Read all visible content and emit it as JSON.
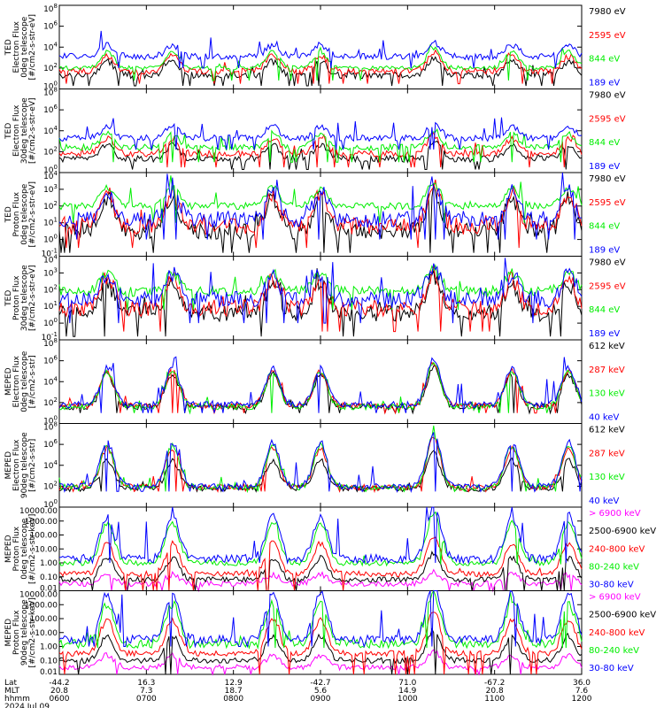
{
  "colors": {
    "black": "#000000",
    "red": "#ff0000",
    "green": "#00ee00",
    "blue": "#0000ff",
    "magenta": "#ff00ff",
    "gray": "#555555"
  },
  "chart_data": {
    "type": "line",
    "x_rows": [
      {
        "label": "Lat",
        "values": [
          "-44.2",
          "16.3",
          "12.9",
          "-42.7",
          "71.0",
          "-67.2",
          "36.0"
        ]
      },
      {
        "label": "MLT",
        "values": [
          "20.8",
          "7.3",
          "18.7",
          "5.6",
          "14.9",
          "20.8",
          "7.6"
        ]
      },
      {
        "label": "hhmm",
        "values": [
          "0600",
          "0700",
          "0800",
          "0900",
          "1000",
          "1100",
          "1200"
        ]
      }
    ],
    "date_label": "2024 Jul 09",
    "x_hours": [
      6,
      7,
      8,
      9,
      10,
      11,
      12
    ],
    "panels": [
      {
        "ylabel": [
          "TED",
          "Electron Flux",
          "0deg telescope",
          "[#/cm2-s-str-eV]"
        ],
        "yticks": [
          "10^0",
          "10^2",
          "10^4",
          "10^6",
          "10^8"
        ],
        "ylog": [
          0,
          8
        ],
        "legend": [
          {
            "label": "7980 eV",
            "color": "#000000"
          },
          {
            "label": "2595 eV",
            "color": "#ff0000"
          },
          {
            "label": "844 eV",
            "color": "#00ee00"
          },
          {
            "label": "189 eV",
            "color": "#0000ff"
          }
        ],
        "series": [
          {
            "name": "7980 eV",
            "color": "#000000",
            "base": 1.3,
            "noise": 0.3,
            "peak_scale": 0.6,
            "spikes": 0.3,
            "floor": 0.3
          },
          {
            "name": "2595 eV",
            "color": "#ff0000",
            "base": 1.7,
            "noise": 0.3,
            "peak_scale": 0.65,
            "spikes": 0.3,
            "floor": 0.5
          },
          {
            "name": "844 eV",
            "color": "#00ee00",
            "base": 2.0,
            "noise": 0.2,
            "peak_scale": 0.7,
            "spikes": 0.4,
            "floor": 0.8
          },
          {
            "name": "189 eV",
            "color": "#0000ff",
            "base": 3.1,
            "noise": 0.3,
            "peak_scale": 0.5,
            "spikes": 0.6,
            "floor": 2.0
          }
        ]
      },
      {
        "ylabel": [
          "TED",
          "Electron Flux",
          "30deg telescope",
          "[#/cm2-s-str-eV]"
        ],
        "yticks": [
          "10^0",
          "10^2",
          "10^4",
          "10^6",
          "10^8"
        ],
        "ylog": [
          0,
          8
        ],
        "legend": [
          {
            "label": "7980 eV",
            "color": "#000000"
          },
          {
            "label": "2595 eV",
            "color": "#ff0000"
          },
          {
            "label": "844 eV",
            "color": "#00ee00"
          },
          {
            "label": "189 eV",
            "color": "#0000ff"
          }
        ],
        "series": [
          {
            "name": "7980 eV",
            "color": "#000000",
            "base": 1.3,
            "noise": 0.3,
            "peak_scale": 0.6,
            "spikes": 0.3,
            "floor": 0.3
          },
          {
            "name": "2595 eV",
            "color": "#ff0000",
            "base": 1.8,
            "noise": 0.3,
            "peak_scale": 0.65,
            "spikes": 0.3,
            "floor": 0.5
          },
          {
            "name": "844 eV",
            "color": "#00ee00",
            "base": 2.4,
            "noise": 0.3,
            "peak_scale": 0.6,
            "spikes": 0.4,
            "floor": 1.0
          },
          {
            "name": "189 eV",
            "color": "#0000ff",
            "base": 3.3,
            "noise": 0.3,
            "peak_scale": 0.5,
            "spikes": 0.6,
            "floor": 2.2
          }
        ]
      },
      {
        "ylabel": [
          "TED",
          "Proton Flux",
          "0deg telescope",
          "[#/cm2-s-str-eV]"
        ],
        "yticks": [
          "10^-1",
          "10^0",
          "10^1",
          "10^2",
          "10^3",
          "10^4"
        ],
        "ylog": [
          -1,
          4
        ],
        "legend": [
          {
            "label": "7980 eV",
            "color": "#000000"
          },
          {
            "label": "2595 eV",
            "color": "#ff0000"
          },
          {
            "label": "844 eV",
            "color": "#00ee00"
          },
          {
            "label": "189 eV",
            "color": "#0000ff"
          }
        ],
        "series": [
          {
            "name": "7980 eV",
            "color": "#000000",
            "base": 0.5,
            "noise": 0.5,
            "peak_scale": 0.9,
            "spikes": 0.3,
            "floor": -0.8
          },
          {
            "name": "2595 eV",
            "color": "#ff0000",
            "base": 0.8,
            "noise": 0.5,
            "peak_scale": 0.9,
            "spikes": 0.3,
            "floor": -0.5
          },
          {
            "name": "844 eV",
            "color": "#00ee00",
            "base": 2.0,
            "noise": 0.2,
            "peak_scale": 0.5,
            "spikes": 0.4,
            "floor": 1.0
          },
          {
            "name": "189 eV",
            "color": "#0000ff",
            "base": 1.2,
            "noise": 0.5,
            "peak_scale": 0.8,
            "spikes": 0.6,
            "floor": 0.0
          }
        ]
      },
      {
        "ylabel": [
          "TED",
          "Proton Flux",
          "30deg telescope",
          "[#/cm2-s-str-eV]"
        ],
        "yticks": [
          "10^-1",
          "10^0",
          "10^1",
          "10^2",
          "10^3",
          "10^4"
        ],
        "ylog": [
          -1,
          4
        ],
        "legend": [
          {
            "label": "7980 eV",
            "color": "#000000"
          },
          {
            "label": "2595 eV",
            "color": "#ff0000"
          },
          {
            "label": "844 eV",
            "color": "#00ee00"
          },
          {
            "label": "189 eV",
            "color": "#0000ff"
          }
        ],
        "series": [
          {
            "name": "7980 eV",
            "color": "#000000",
            "base": 0.6,
            "noise": 0.5,
            "peak_scale": 0.8,
            "spikes": 0.3,
            "floor": -0.8
          },
          {
            "name": "2595 eV",
            "color": "#ff0000",
            "base": 0.9,
            "noise": 0.5,
            "peak_scale": 0.8,
            "spikes": 0.3,
            "floor": -0.5
          },
          {
            "name": "844 eV",
            "color": "#00ee00",
            "base": 1.9,
            "noise": 0.3,
            "peak_scale": 0.5,
            "spikes": 0.4,
            "floor": 0.8
          },
          {
            "name": "189 eV",
            "color": "#0000ff",
            "base": 1.4,
            "noise": 0.5,
            "peak_scale": 0.7,
            "spikes": 0.6,
            "floor": 0.0
          }
        ]
      },
      {
        "ylabel": [
          "MEPED",
          "Electron Flux",
          "0deg telescope",
          "[#/cm2-s-str]"
        ],
        "yticks": [
          "10^0",
          "10^2",
          "10^4",
          "10^6",
          "10^8"
        ],
        "ylog": [
          0,
          8
        ],
        "legend": [
          {
            "label": "612 keV",
            "color": "#000000"
          },
          {
            "label": "287 keV",
            "color": "#ff0000"
          },
          {
            "label": "130 keV",
            "color": "#00ee00"
          },
          {
            "label": "40 keV",
            "color": "#0000ff"
          }
        ],
        "series": [
          {
            "name": "612 keV",
            "color": "#000000",
            "base": 1.6,
            "noise": 0.3,
            "peak_scale": 1.4,
            "spikes": 0.2,
            "floor": 1.0
          },
          {
            "name": "287 keV",
            "color": "#ff0000",
            "base": 1.7,
            "noise": 0.3,
            "peak_scale": 1.5,
            "spikes": 0.3,
            "floor": 1.0
          },
          {
            "name": "130 keV",
            "color": "#00ee00",
            "base": 1.6,
            "noise": 0.3,
            "peak_scale": 1.55,
            "spikes": 0.3,
            "floor": 1.0
          },
          {
            "name": "40 keV",
            "color": "#0000ff",
            "base": 1.8,
            "noise": 0.3,
            "peak_scale": 1.6,
            "spikes": 0.8,
            "floor": 1.0
          }
        ]
      },
      {
        "ylabel": [
          "MEPED",
          "Electron Flux",
          "90deg telescope",
          "[#/cm2-s-str]"
        ],
        "yticks": [
          "10^0",
          "10^2",
          "10^4",
          "10^6",
          "10^8"
        ],
        "ylog": [
          0,
          8
        ],
        "legend": [
          {
            "label": "612 keV",
            "color": "#000000"
          },
          {
            "label": "287 keV",
            "color": "#ff0000"
          },
          {
            "label": "130 keV",
            "color": "#00ee00"
          },
          {
            "label": "40 keV",
            "color": "#0000ff"
          }
        ],
        "series": [
          {
            "name": "612 keV",
            "color": "#000000",
            "base": 1.8,
            "noise": 0.3,
            "peak_scale": 1.2,
            "spikes": 0.2,
            "floor": 1.5
          },
          {
            "name": "287 keV",
            "color": "#ff0000",
            "base": 1.9,
            "noise": 0.3,
            "peak_scale": 1.7,
            "spikes": 0.3,
            "floor": 1.5
          },
          {
            "name": "130 keV",
            "color": "#00ee00",
            "base": 1.9,
            "noise": 0.3,
            "peak_scale": 1.8,
            "spikes": 0.3,
            "floor": 1.5
          },
          {
            "name": "40 keV",
            "color": "#0000ff",
            "base": 2.0,
            "noise": 0.3,
            "peak_scale": 1.9,
            "spikes": 0.8,
            "floor": 1.5
          }
        ]
      },
      {
        "ylabel": [
          "MEPED",
          "Proton Flux",
          "0deg telescope",
          "[#/cm2-s-str-keV]"
        ],
        "yticks": [
          "0.01",
          "0.10",
          "1.00",
          "10.00",
          "100.00",
          "1000.00",
          "10000.00"
        ],
        "ylog": [
          -2,
          4
        ],
        "legend": [
          {
            "label": "> 6900 keV",
            "color": "#ff00ff"
          },
          {
            "label": "2500-6900 keV",
            "color": "#000000"
          },
          {
            "label": "240-800 keV",
            "color": "#ff0000"
          },
          {
            "label": "80-240 keV",
            "color": "#00ee00"
          },
          {
            "label": "30-80 keV",
            "color": "#0000ff"
          }
        ],
        "series": [
          {
            "name": "> 6900 keV",
            "color": "#ff00ff",
            "base": -1.5,
            "noise": 0.2,
            "peak_scale": 0.3,
            "spikes": 0.0,
            "floor": -2.0
          },
          {
            "name": "2500-6900 keV",
            "color": "#000000",
            "base": -1.2,
            "noise": 0.2,
            "peak_scale": 0.7,
            "spikes": 0.0,
            "floor": -2.0
          },
          {
            "name": "240-800 keV",
            "color": "#ff0000",
            "base": -0.8,
            "noise": 0.2,
            "peak_scale": 1.0,
            "spikes": 0.1,
            "floor": -2.0
          },
          {
            "name": "80-240 keV",
            "color": "#00ee00",
            "base": 0.0,
            "noise": 0.2,
            "peak_scale": 1.3,
            "spikes": 0.2,
            "floor": -0.1
          },
          {
            "name": "30-80 keV",
            "color": "#0000ff",
            "base": 0.3,
            "noise": 0.3,
            "peak_scale": 1.4,
            "spikes": 1.0,
            "floor": 0.0
          }
        ]
      },
      {
        "ylabel": [
          "MEPED",
          "Proton Flux",
          "90deg telescope",
          "[#/cm2-s-str-keV]"
        ],
        "yticks": [
          "0.01",
          "0.10",
          "1.00",
          "10.00",
          "100.00",
          "1000.00",
          "10000.00"
        ],
        "ylog": [
          -2,
          4
        ],
        "legend": [
          {
            "label": "> 6900 keV",
            "color": "#ff00ff"
          },
          {
            "label": "2500-6900 keV",
            "color": "#000000"
          },
          {
            "label": "240-800 keV",
            "color": "#ff0000"
          },
          {
            "label": "80-240 keV",
            "color": "#00ee00"
          },
          {
            "label": "30-80 keV",
            "color": "#0000ff"
          }
        ],
        "series": [
          {
            "name": "> 6900 keV",
            "color": "#ff00ff",
            "base": -1.5,
            "noise": 0.2,
            "peak_scale": 0.4,
            "spikes": 0.0,
            "floor": -2.0
          },
          {
            "name": "2500-6900 keV",
            "color": "#000000",
            "base": -1.0,
            "noise": 0.2,
            "peak_scale": 0.8,
            "spikes": 0.0,
            "floor": -2.0
          },
          {
            "name": "240-800 keV",
            "color": "#ff0000",
            "base": -0.5,
            "noise": 0.2,
            "peak_scale": 1.1,
            "spikes": 0.1,
            "floor": -2.0
          },
          {
            "name": "80-240 keV",
            "color": "#00ee00",
            "base": 0.2,
            "noise": 0.3,
            "peak_scale": 1.3,
            "spikes": 0.3,
            "floor": -0.1
          },
          {
            "name": "30-80 keV",
            "color": "#0000ff",
            "base": 0.5,
            "noise": 0.3,
            "peak_scale": 1.5,
            "spikes": 1.0,
            "floor": 0.0
          }
        ]
      }
    ],
    "event_peaks_hours": [
      6.55,
      7.3,
      8.45,
      9.0,
      10.3,
      11.2,
      11.85
    ]
  }
}
